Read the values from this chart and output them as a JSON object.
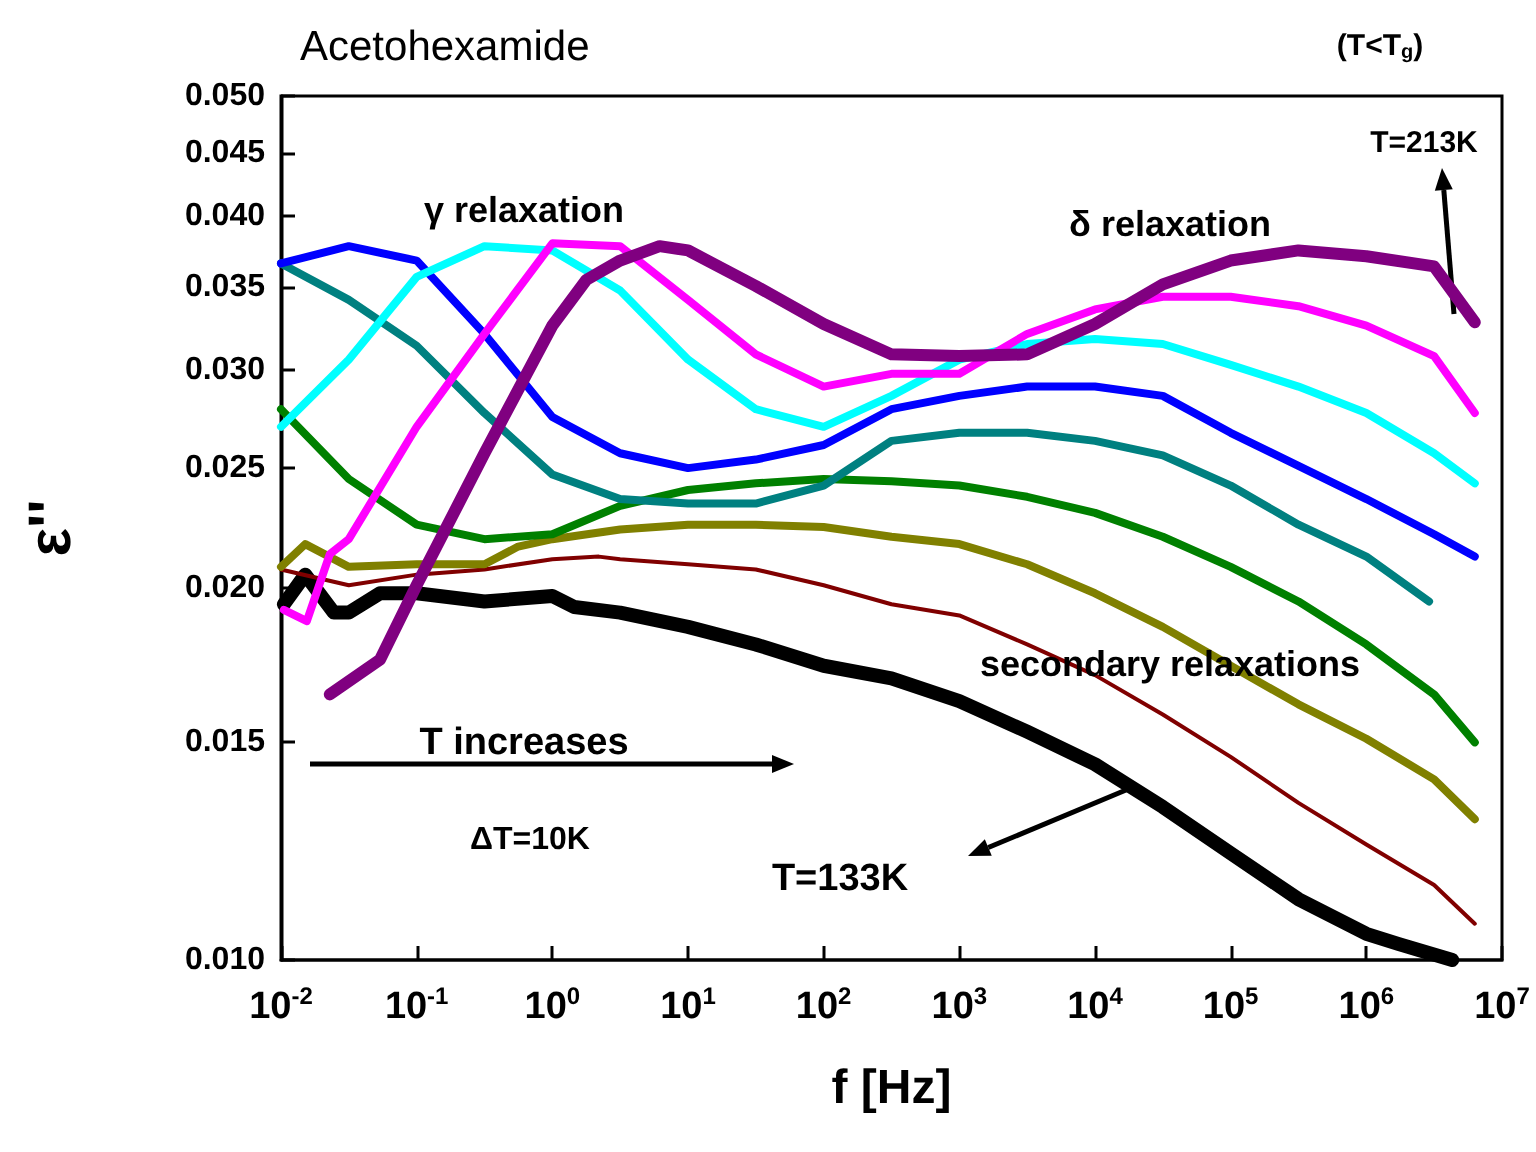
{
  "chart_data": {
    "type": "line",
    "title": "Acetohexamide",
    "xlabel": "f [Hz]",
    "ylabel": "ε''",
    "log": "xy",
    "xlim": [
      0.01,
      10000000
    ],
    "ylim": [
      0.01,
      0.05
    ],
    "xticks": [
      {
        "value": 0.01,
        "label": "10$^{-2}$"
      },
      {
        "value": 0.1,
        "label": "10$^{-1}$"
      },
      {
        "value": 1,
        "label": "10$^{0}$"
      },
      {
        "value": 10,
        "label": "10$^{1}$"
      },
      {
        "value": 100,
        "label": "10$^{2}$"
      },
      {
        "value": 1000,
        "label": "10$^{3}$"
      },
      {
        "value": 10000,
        "label": "10$^{4}$"
      },
      {
        "value": 100000,
        "label": "10$^{5}$"
      },
      {
        "value": 1000000,
        "label": "10$^{6}$"
      },
      {
        "value": 10000000,
        "label": "10$^{7}$"
      }
    ],
    "yticks": [
      {
        "value": 0.01,
        "label": "0.010"
      },
      {
        "value": 0.015,
        "label": "0.015"
      },
      {
        "value": 0.02,
        "label": "0.020"
      },
      {
        "value": 0.025,
        "label": "0.025"
      },
      {
        "value": 0.03,
        "label": "0.030"
      },
      {
        "value": 0.035,
        "label": "0.035"
      },
      {
        "value": 0.04,
        "label": "0.040"
      },
      {
        "value": 0.045,
        "label": "0.045"
      },
      {
        "value": 0.05,
        "label": "0.050"
      }
    ],
    "grid": false,
    "marker": "none",
    "line_style": "solid",
    "annotations": [
      "(T<T$_{g}$)",
      "γ relaxation",
      "T=213K",
      "δ relaxation",
      "secondary relaxations",
      "T increases",
      "ΔT=10K",
      "T=133K"
    ],
    "series": [
      {
        "color": "#000000",
        "x": [
          0.0105,
          0.0151,
          0.0245,
          0.0316,
          0.0537,
          0.1,
          0.316,
          1,
          1.45,
          3.16,
          10,
          31.6,
          100,
          316,
          1000,
          3160,
          10000,
          31600,
          100000,
          316000,
          1000000,
          1740000,
          4300000
        ],
        "values": [
          0.0194,
          0.0205,
          0.0191,
          0.0191,
          0.0198,
          0.0198,
          0.0195,
          0.0197,
          0.0193,
          0.0191,
          0.0186,
          0.018,
          0.0173,
          0.0169,
          0.0162,
          0.0153,
          0.0144,
          0.0133,
          0.0122,
          0.0112,
          0.0105,
          0.0103,
          0.01
        ]
      },
      {
        "color": "#800000",
        "x": [
          0.01,
          0.0316,
          0.1,
          0.316,
          1,
          2.2,
          3.16,
          10,
          31.6,
          100,
          316,
          1000,
          3160,
          10000,
          31600,
          100000,
          316000,
          1000000,
          3160000,
          6300000
        ],
        "values": [
          0.0207,
          0.0201,
          0.0205,
          0.0207,
          0.0211,
          0.0212,
          0.0211,
          0.0209,
          0.0207,
          0.0201,
          0.0194,
          0.019,
          0.018,
          0.017,
          0.0158,
          0.0146,
          0.0134,
          0.0124,
          0.0115,
          0.0107
        ]
      },
      {
        "color": "#808000",
        "x": [
          0.01,
          0.0151,
          0.0316,
          0.1,
          0.316,
          0.56,
          1,
          3.16,
          10,
          31.6,
          100,
          316,
          1000,
          3160,
          10000,
          31600,
          100000,
          316000,
          1000000,
          3160000,
          6300000
        ],
        "values": [
          0.0208,
          0.0217,
          0.0208,
          0.0209,
          0.0209,
          0.0216,
          0.0219,
          0.0223,
          0.0225,
          0.0225,
          0.0224,
          0.022,
          0.0217,
          0.0209,
          0.0198,
          0.0186,
          0.0173,
          0.0161,
          0.0151,
          0.014,
          0.013
        ]
      },
      {
        "color": "#008000",
        "x": [
          0.01,
          0.0316,
          0.1,
          0.316,
          1,
          3.16,
          10,
          31.6,
          100,
          316,
          1000,
          3160,
          10000,
          31600,
          100000,
          316000,
          1000000,
          3160000,
          6300000
        ],
        "values": [
          0.0279,
          0.0245,
          0.0225,
          0.0219,
          0.0221,
          0.0233,
          0.024,
          0.0243,
          0.0245,
          0.0244,
          0.0242,
          0.0237,
          0.023,
          0.022,
          0.0208,
          0.0195,
          0.018,
          0.0164,
          0.015
        ]
      },
      {
        "color": "#008080",
        "x": [
          0.01,
          0.0316,
          0.1,
          0.316,
          1,
          3.16,
          10,
          31.6,
          100,
          316,
          1000,
          3160,
          10000,
          31600,
          100000,
          316000,
          1000000,
          2900000
        ],
        "values": [
          0.0366,
          0.0342,
          0.0314,
          0.0277,
          0.0247,
          0.0236,
          0.0234,
          0.0234,
          0.0242,
          0.0263,
          0.0267,
          0.0267,
          0.0263,
          0.0256,
          0.0242,
          0.0225,
          0.0212,
          0.0195
        ]
      },
      {
        "color": "#0000ff",
        "x": [
          0.01,
          0.0316,
          0.1,
          0.316,
          1,
          3.16,
          10,
          31.6,
          100,
          316,
          1000,
          3160,
          10000,
          31600,
          100000,
          316000,
          1000000,
          3160000,
          6300000
        ],
        "values": [
          0.0366,
          0.0378,
          0.0368,
          0.0321,
          0.0275,
          0.0257,
          0.025,
          0.0254,
          0.0261,
          0.0279,
          0.0286,
          0.0291,
          0.0291,
          0.0286,
          0.0267,
          0.0251,
          0.0236,
          0.0221,
          0.0212
        ]
      },
      {
        "color": "#00ffff",
        "x": [
          0.01,
          0.0316,
          0.1,
          0.316,
          1,
          3.16,
          10,
          31.6,
          100,
          316,
          1000,
          3160,
          10000,
          31600,
          100000,
          316000,
          1000000,
          3160000,
          6300000
        ],
        "values": [
          0.027,
          0.0306,
          0.0357,
          0.0378,
          0.0375,
          0.0348,
          0.0306,
          0.0279,
          0.027,
          0.0286,
          0.0306,
          0.0315,
          0.0318,
          0.0315,
          0.0303,
          0.0291,
          0.0277,
          0.0257,
          0.0243
        ]
      },
      {
        "color": "#ff00ff",
        "x": [
          0.0105,
          0.0155,
          0.0229,
          0.0316,
          0.1,
          0.316,
          1,
          3.16,
          10,
          31.6,
          100,
          316,
          1000,
          3160,
          10000,
          31600,
          100000,
          316000,
          1000000,
          3160000,
          6300000
        ],
        "values": [
          0.0192,
          0.0188,
          0.0213,
          0.0219,
          0.027,
          0.0321,
          0.038,
          0.0378,
          0.0342,
          0.0309,
          0.0291,
          0.0298,
          0.0298,
          0.0321,
          0.0336,
          0.0344,
          0.0344,
          0.0338,
          0.0326,
          0.0308,
          0.0277
        ]
      },
      {
        "color": "#800080",
        "x": [
          0.0229,
          0.0537,
          0.1,
          0.316,
          1,
          1.78,
          3.16,
          6.17,
          10,
          31.6,
          100,
          316,
          1000,
          3160,
          10000,
          31600,
          100000,
          316000,
          1000000,
          3160000,
          6300000
        ],
        "values": [
          0.0164,
          0.0175,
          0.0201,
          0.0257,
          0.0326,
          0.0355,
          0.0368,
          0.0378,
          0.0375,
          0.0351,
          0.0327,
          0.0309,
          0.0308,
          0.0309,
          0.0327,
          0.0352,
          0.0368,
          0.0375,
          0.0371,
          0.0364,
          0.0328
        ]
      }
    ]
  }
}
